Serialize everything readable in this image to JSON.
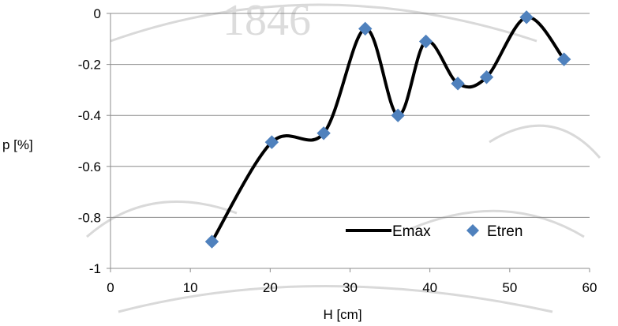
{
  "chart_data": {
    "type": "scatter",
    "xlabel": "H [cm]",
    "ylabel": "p [%]",
    "xlim": [
      0,
      60
    ],
    "ylim": [
      -1,
      0
    ],
    "x_ticks": [
      0,
      10,
      20,
      30,
      40,
      50,
      60
    ],
    "y_ticks": [
      0,
      -0.2,
      -0.4,
      -0.6,
      -0.8,
      -1
    ],
    "x_tick_labels": [
      "0",
      "10",
      "20",
      "30",
      "40",
      "50",
      "60"
    ],
    "y_tick_labels": [
      "0",
      "-0.2",
      "-0.4",
      "-0.6",
      "-0.8",
      "-1"
    ],
    "grid": "horizontal",
    "legend_position": "bottom-right",
    "series": [
      {
        "name": "Emax",
        "kind": "smooth-line",
        "color": "#000000",
        "x": [
          12.7,
          20.2,
          26.7,
          31.9,
          36.0,
          39.5,
          43.5,
          47.1,
          52.1,
          56.8
        ],
        "y": [
          -0.895,
          -0.505,
          -0.47,
          -0.06,
          -0.4,
          -0.11,
          -0.275,
          -0.25,
          -0.015,
          -0.18
        ]
      },
      {
        "name": "Etren",
        "kind": "markers",
        "marker": "diamond",
        "color": "#4F81BD",
        "x": [
          12.7,
          20.2,
          26.7,
          31.9,
          36.0,
          39.5,
          43.5,
          47.1,
          52.1,
          56.8
        ],
        "y": [
          -0.895,
          -0.505,
          -0.47,
          -0.06,
          -0.4,
          -0.11,
          -0.275,
          -0.25,
          -0.015,
          -0.18
        ]
      }
    ]
  }
}
